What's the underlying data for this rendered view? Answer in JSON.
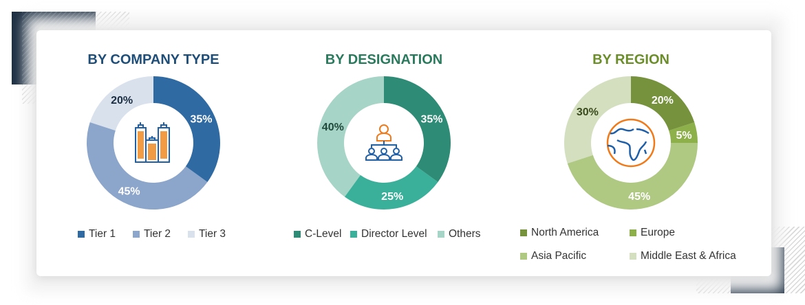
{
  "chart_data": [
    {
      "type": "pie",
      "title": "BY COMPANY TYPE",
      "title_color": "#1f4e79",
      "icon": "buildings-icon",
      "series": [
        {
          "name": "Tier 1",
          "value": 35,
          "color": "#2f6aa3",
          "label_color": "#ffffff"
        },
        {
          "name": "Tier 2",
          "value": 45,
          "color": "#8ca5cb",
          "label_color": "#ffffff"
        },
        {
          "name": "Tier 3",
          "value": 20,
          "color": "#d9e1ed",
          "label_color": "#1c2e42"
        }
      ]
    },
    {
      "type": "pie",
      "title": "BY DESIGNATION",
      "title_color": "#2a7a5e",
      "icon": "org-hierarchy-icon",
      "series": [
        {
          "name": "C-Level",
          "value": 35,
          "color": "#2e8b75",
          "label_color": "#ffffff"
        },
        {
          "name": "Director Level",
          "value": 25,
          "color": "#3ab09a",
          "label_color": "#ffffff"
        },
        {
          "name": "Others",
          "value": 40,
          "color": "#a6d4c6",
          "label_color": "#1f4a3c"
        }
      ]
    },
    {
      "type": "pie",
      "title": "BY REGION",
      "title_color": "#6b8e2b",
      "icon": "globe-icon",
      "series": [
        {
          "name": "North America",
          "value": 20,
          "color": "#76923c",
          "label_color": "#ffffff"
        },
        {
          "name": "Europe",
          "value": 5,
          "color": "#8db04b",
          "label_color": "#ffffff"
        },
        {
          "name": "Asia Pacific",
          "value": 45,
          "color": "#afc882",
          "label_color": "#ffffff"
        },
        {
          "name": "Middle East & Africa",
          "value": 30,
          "color": "#d3dfbf",
          "label_color": "#3a4a1c"
        }
      ]
    }
  ]
}
